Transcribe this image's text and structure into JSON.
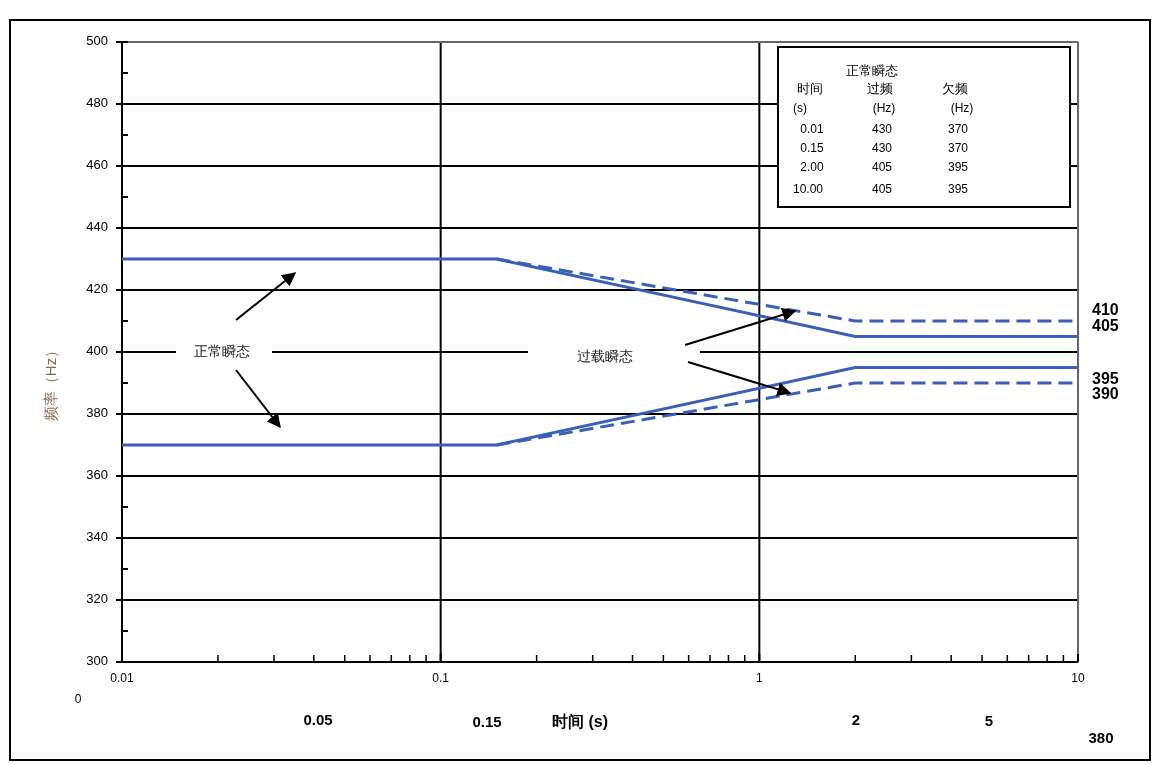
{
  "chart_data": {
    "type": "line",
    "xlabel": "时间 (s)",
    "ylabel": "频率（Hz）",
    "log": "x",
    "xlim": [
      0.01,
      10
    ],
    "xticks": [
      0.01,
      0.1,
      1,
      10
    ],
    "ylim": [
      300,
      500
    ],
    "yticks": [
      300,
      320,
      340,
      360,
      380,
      400,
      420,
      440,
      460,
      480,
      500
    ],
    "grid": true,
    "marker": "none",
    "series": [
      {
        "color": "#3a5fb5",
        "line_style": "solid",
        "x": [
          0.01,
          0.15,
          2,
          10
        ],
        "values": [
          430,
          430,
          405,
          405
        ],
        "value_labels": [
          null,
          null,
          null,
          "405"
        ]
      },
      {
        "color": "#3a5fb5",
        "line_style": "solid",
        "x": [
          0.01,
          0.15,
          2,
          10
        ],
        "values": [
          370,
          370,
          395,
          395
        ],
        "value_labels": [
          null,
          null,
          null,
          "395"
        ]
      },
      {
        "color": "#3a5fb5",
        "line_style": "dashed",
        "x": [
          0.15,
          2,
          10
        ],
        "values": [
          430,
          410,
          410
        ],
        "value_labels": [
          null,
          null,
          "410"
        ]
      },
      {
        "color": "#3a5fb5",
        "line_style": "dashed",
        "x": [
          0.15,
          2,
          10
        ],
        "values": [
          370,
          390,
          390
        ],
        "value_labels": [
          null,
          null,
          "390"
        ]
      }
    ],
    "annotations": [
      "正常瞬态",
      "过载瞬态",
      "正常瞬态",
      "时间",
      "过频",
      "欠频",
      "(s)",
      "(Hz)",
      "(Hz)",
      "0.01",
      "430",
      "370",
      "0.15",
      "430",
      "370",
      "2.00",
      "405",
      "395",
      "10.00",
      "405",
      "395",
      "0",
      "0.05",
      "0.15",
      "2",
      "5",
      "380"
    ]
  }
}
